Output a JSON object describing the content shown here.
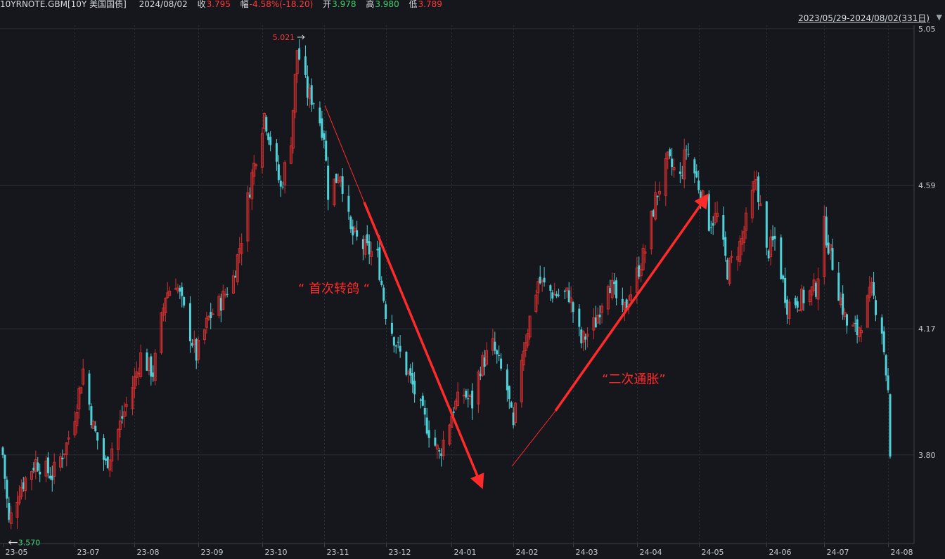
{
  "header": {
    "symbol": "10YRNOTE.GBM[10Y 美国国债]",
    "date": "2024/08/02",
    "close_label": "收",
    "close_value": "3.795",
    "change_label": "幅",
    "change_value": "-4.58%(-18.20)",
    "open_label": "开",
    "open_value": "3.978",
    "high_label": "高",
    "high_value": "3.980",
    "low_label": "低",
    "low_value": "3.789",
    "range": "2023/05/29-2024/08/02(331日)"
  },
  "colors": {
    "background": "#15171c",
    "grid": "#2a2e36",
    "up": "#d32f2f",
    "down": "#4fd1d9",
    "annotation": "#ff2a2a"
  },
  "chart_data": {
    "type": "candlestick",
    "ylim": [
      3.54,
      5.06
    ],
    "y_ticks": [
      "5.05",
      "4.59",
      "4.17",
      "3.80"
    ],
    "x_tick_labels": [
      "23-05",
      "23-07",
      "23-08",
      "23-09",
      "23-10",
      "23-11",
      "23-12",
      "24-01",
      "24-02",
      "24-03",
      "24-04",
      "24-05",
      "24-06",
      "24-07",
      "24-08"
    ],
    "max_marker": "5.021",
    "min_marker": "3.570",
    "annotations": [
      "“  首次转鸽  “",
      "“二次通胀”"
    ],
    "close_path": [
      [
        "2023-05-29",
        3.8
      ],
      [
        "2023-06-01",
        3.6
      ],
      [
        "2023-06-06",
        3.7
      ],
      [
        "2023-06-14",
        3.78
      ],
      [
        "2023-06-22",
        3.74
      ],
      [
        "2023-06-29",
        3.83
      ],
      [
        "2023-07-03",
        3.92
      ],
      [
        "2023-07-07",
        4.05
      ],
      [
        "2023-07-12",
        3.88
      ],
      [
        "2023-07-18",
        3.77
      ],
      [
        "2023-07-25",
        3.89
      ],
      [
        "2023-08-01",
        4.02
      ],
      [
        "2023-08-04",
        4.09
      ],
      [
        "2023-08-10",
        4.04
      ],
      [
        "2023-08-16",
        4.27
      ],
      [
        "2023-08-21",
        4.31
      ],
      [
        "2023-08-25",
        4.22
      ],
      [
        "2023-08-31",
        4.09
      ],
      [
        "2023-09-06",
        4.2
      ],
      [
        "2023-09-12",
        4.25
      ],
      [
        "2023-09-18",
        4.32
      ],
      [
        "2023-09-22",
        4.44
      ],
      [
        "2023-09-27",
        4.62
      ],
      [
        "2023-10-03",
        4.8
      ],
      [
        "2023-10-06",
        4.72
      ],
      [
        "2023-10-11",
        4.58
      ],
      [
        "2023-10-16",
        4.73
      ],
      [
        "2023-10-19",
        4.99
      ],
      [
        "2023-10-24",
        4.86
      ],
      [
        "2023-10-27",
        4.84
      ],
      [
        "2023-11-01",
        4.74
      ],
      [
        "2023-11-03",
        4.57
      ],
      [
        "2023-11-09",
        4.63
      ],
      [
        "2023-11-14",
        4.45
      ],
      [
        "2023-11-20",
        4.41
      ],
      [
        "2023-11-27",
        4.38
      ],
      [
        "2023-12-01",
        4.22
      ],
      [
        "2023-12-07",
        4.11
      ],
      [
        "2023-12-13",
        4.02
      ],
      [
        "2023-12-18",
        3.93
      ],
      [
        "2023-12-27",
        3.8
      ],
      [
        "2024-01-03",
        3.94
      ],
      [
        "2024-01-08",
        3.98
      ],
      [
        "2024-01-12",
        3.95
      ],
      [
        "2024-01-16",
        4.06
      ],
      [
        "2024-01-22",
        4.12
      ],
      [
        "2024-01-29",
        3.99
      ],
      [
        "2024-02-01",
        3.87
      ],
      [
        "2024-02-05",
        4.09
      ],
      [
        "2024-02-13",
        4.31
      ],
      [
        "2024-02-21",
        4.27
      ],
      [
        "2024-02-28",
        4.27
      ],
      [
        "2024-03-05",
        4.13
      ],
      [
        "2024-03-12",
        4.19
      ],
      [
        "2024-03-18",
        4.32
      ],
      [
        "2024-03-25",
        4.21
      ],
      [
        "2024-04-01",
        4.33
      ],
      [
        "2024-04-05",
        4.4
      ],
      [
        "2024-04-10",
        4.55
      ],
      [
        "2024-04-16",
        4.66
      ],
      [
        "2024-04-22",
        4.61
      ],
      [
        "2024-04-25",
        4.7
      ],
      [
        "2024-05-01",
        4.59
      ],
      [
        "2024-05-06",
        4.48
      ],
      [
        "2024-05-10",
        4.5
      ],
      [
        "2024-05-15",
        4.34
      ],
      [
        "2024-05-22",
        4.43
      ],
      [
        "2024-05-29",
        4.61
      ],
      [
        "2024-06-03",
        4.39
      ],
      [
        "2024-06-07",
        4.43
      ],
      [
        "2024-06-13",
        4.24
      ],
      [
        "2024-06-21",
        4.26
      ],
      [
        "2024-06-27",
        4.29
      ],
      [
        "2024-07-01",
        4.47
      ],
      [
        "2024-07-08",
        4.28
      ],
      [
        "2024-07-12",
        4.18
      ],
      [
        "2024-07-17",
        4.16
      ],
      [
        "2024-07-24",
        4.28
      ],
      [
        "2024-07-29",
        4.17
      ],
      [
        "2024-08-01",
        3.98
      ],
      [
        "2024-08-02",
        3.795
      ]
    ]
  }
}
